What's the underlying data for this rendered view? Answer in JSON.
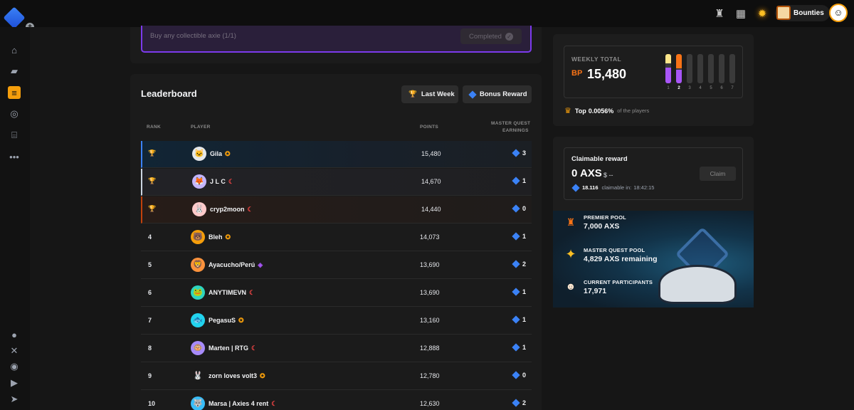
{
  "topbar": {
    "bounties_label": "Bounties"
  },
  "quest": {
    "text": "Buy any collectible axie (1/1)",
    "status": "Completed"
  },
  "leaderboard": {
    "title": "Leaderboard",
    "last_week_label": "Last Week",
    "bonus_reward_label": "Bonus Reward",
    "columns": {
      "rank": "RANK",
      "player": "PLAYER",
      "points": "POINTS",
      "earnings_line1": "MASTER QUEST",
      "earnings_line2": "EARNINGS"
    },
    "rows": [
      {
        "rank": "1",
        "name": "Gila",
        "points": "15,480",
        "earnings": "3"
      },
      {
        "rank": "2",
        "name": "J L C",
        "points": "14,670",
        "earnings": "1"
      },
      {
        "rank": "3",
        "name": "cryp2moon",
        "points": "14,440",
        "earnings": "0"
      },
      {
        "rank": "4",
        "name": "Bleh",
        "points": "14,073",
        "earnings": "1"
      },
      {
        "rank": "5",
        "name": "Ayacucho/Perú",
        "points": "13,690",
        "earnings": "2"
      },
      {
        "rank": "6",
        "name": "ANYTIMEVN",
        "points": "13,690",
        "earnings": "1"
      },
      {
        "rank": "7",
        "name": "PegasuS",
        "points": "13,160",
        "earnings": "1"
      },
      {
        "rank": "8",
        "name": "Marten | RTG",
        "points": "12,888",
        "earnings": "1"
      },
      {
        "rank": "9",
        "name": "zorn loves volt3",
        "points": "12,780",
        "earnings": "0"
      },
      {
        "rank": "10",
        "name": "Marsa | Axies 4 rent",
        "points": "12,630",
        "earnings": "2"
      }
    ]
  },
  "weekly": {
    "label": "WEEKLY TOTAL",
    "bp_icon": "BP",
    "value": "15,480",
    "days": [
      "1",
      "2",
      "3",
      "4",
      "5",
      "6",
      "7"
    ],
    "active_day": "2",
    "top_prefix": "Top",
    "top_percent": "0.0056%",
    "top_suffix": "of the players"
  },
  "claim": {
    "label": "Claimable reward",
    "value": "0 AXS",
    "usd": "$ --",
    "button": "Claim",
    "gems": "18.116",
    "claimable_text": "claimable in:",
    "countdown": "18:42:15"
  },
  "pools": {
    "premier_label": "PREMIER POOL",
    "premier_value": "7,000  AXS",
    "master_label": "MASTER QUEST POOL",
    "master_value": "4,829  AXS remaining",
    "participants_label": "CURRENT PARTICIPANTS",
    "participants_value": "17,971"
  },
  "colors": {
    "accent_purple": "#7c3aed",
    "accent_orange": "#f59e0b",
    "gem_blue": "#3b82f6"
  }
}
